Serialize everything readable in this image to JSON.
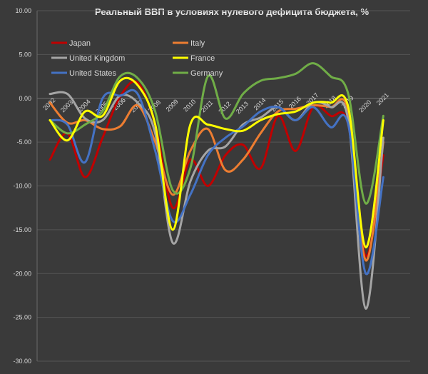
{
  "chart_data": {
    "type": "line",
    "title": "Реальный ВВП в условиях нулевого дефицита бюджета, %",
    "xlabel": "",
    "ylabel": "",
    "ylim": [
      -30,
      10
    ],
    "yticks": [
      10,
      5,
      0,
      -5,
      -10,
      -15,
      -20,
      -25,
      -30
    ],
    "ytick_labels": [
      "10.00",
      "5.00",
      "0.00",
      "-5.00",
      "-10.00",
      "-15.00",
      "-20.00",
      "-25.00",
      "-30.00"
    ],
    "categories": [
      "2002",
      "2003",
      "2004",
      "2005",
      "2006",
      "2007",
      "2008",
      "2009",
      "2010",
      "2011",
      "2012",
      "2013",
      "2014",
      "2015",
      "2016",
      "2017",
      "2018",
      "2019",
      "2020",
      "2021"
    ],
    "grid": true,
    "legend_position": "top-left",
    "series": [
      {
        "name": "Japan",
        "color": "#c00000",
        "values": [
          -7.0,
          -4.0,
          -9.0,
          -4.5,
          0.2,
          1.8,
          -3.0,
          -12.5,
          -7.0,
          -10.0,
          -6.5,
          -5.3,
          -8.0,
          -2.0,
          -6.0,
          -1.0,
          -2.0,
          -3.0,
          -18.0,
          -6.5
        ]
      },
      {
        "name": "Italy",
        "color": "#ed7d31",
        "values": [
          -0.5,
          -2.8,
          -2.5,
          -3.5,
          -3.2,
          -0.8,
          -5.0,
          -11.0,
          -6.0,
          -3.5,
          -8.2,
          -7.0,
          -4.0,
          -1.5,
          -1.2,
          -0.8,
          -1.0,
          -1.5,
          -18.5,
          -5.0
        ]
      },
      {
        "name": "United Kingdom",
        "color": "#a5a5a5",
        "values": [
          0.5,
          0.5,
          -2.3,
          -2.5,
          0.3,
          -0.5,
          -4.0,
          -16.5,
          -9.5,
          -6.0,
          -5.5,
          -3.0,
          -2.2,
          -1.0,
          -2.5,
          -0.5,
          -1.0,
          -2.5,
          -24.0,
          -4.5
        ]
      },
      {
        "name": "France",
        "color": "#ffff00",
        "values": [
          -2.5,
          -4.8,
          -1.5,
          -2.0,
          2.0,
          1.5,
          -3.0,
          -15.0,
          -3.0,
          -3.0,
          -3.5,
          -3.7,
          -2.5,
          -1.8,
          -1.5,
          -0.5,
          -0.5,
          -1.0,
          -17.0,
          -2.5
        ]
      },
      {
        "name": "United States",
        "color": "#4472c4",
        "values": [
          -2.5,
          -3.0,
          -7.3,
          0.0,
          0.3,
          0.5,
          -6.0,
          -14.0,
          -11.0,
          -6.5,
          -4.5,
          -3.2,
          -1.5,
          -1.0,
          -2.5,
          -1.0,
          -3.3,
          -3.0,
          -20.0,
          -9.0
        ]
      },
      {
        "name": "Germany",
        "color": "#70ad47",
        "values": [
          -2.5,
          -4.0,
          -3.0,
          -1.5,
          2.5,
          2.3,
          -1.5,
          -10.5,
          -8.0,
          2.5,
          -2.3,
          0.5,
          2.0,
          2.3,
          2.8,
          4.0,
          2.5,
          0.5,
          -12.0,
          -2.0
        ]
      }
    ]
  }
}
